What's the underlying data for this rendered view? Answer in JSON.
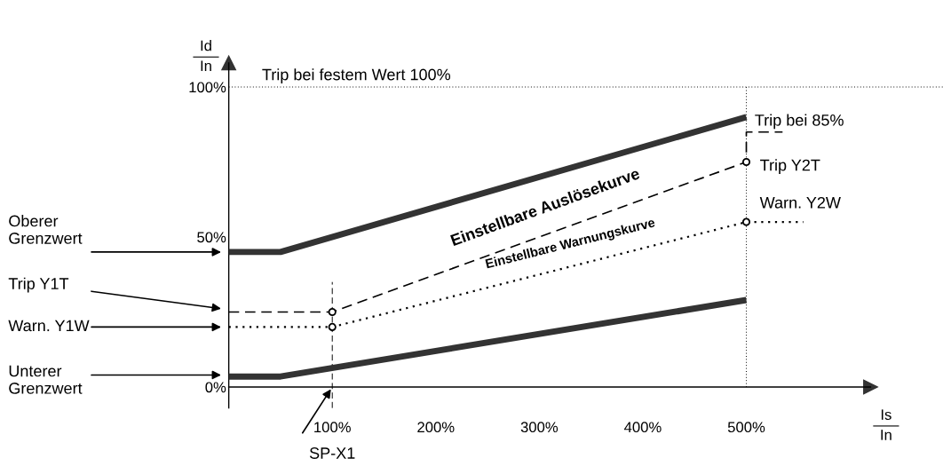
{
  "chart_data": {
    "type": "line",
    "xlabel": "Is\nIn",
    "ylabel": "Id\nIn",
    "xlim": [
      -221,
      690
    ],
    "ylim": [
      -29,
      129
    ],
    "xticks": [
      {
        "value": 100,
        "label": "100%"
      },
      {
        "value": 200,
        "label": "200%"
      },
      {
        "value": 300,
        "label": "300%"
      },
      {
        "value": 400,
        "label": "400%"
      },
      {
        "value": 500,
        "label": "500%"
      }
    ],
    "yticks": [
      {
        "value": 0,
        "label": "0%"
      },
      {
        "value": 50,
        "label": "50%"
      },
      {
        "value": 100,
        "label": "100%"
      }
    ],
    "series": [
      {
        "color": "#333333",
        "line_style": "solid",
        "x": [
          0,
          50,
          500
        ],
        "values": [
          45,
          45,
          90
        ]
      },
      {
        "color": "#333333",
        "line_style": "solid",
        "x": [
          0,
          50,
          500
        ],
        "values": [
          3.5,
          3.5,
          29
        ]
      },
      {
        "color": "#000000",
        "line_style": "dashed",
        "x": [
          0,
          100,
          500,
          500,
          535
        ],
        "values": [
          25,
          25,
          75,
          85,
          85
        ]
      },
      {
        "color": "#000000",
        "line_style": "dotted",
        "x": [
          0,
          100,
          500,
          555
        ],
        "values": [
          20,
          20,
          55,
          55
        ]
      },
      {
        "type": "scatter",
        "color": "#000000",
        "marker": "circle",
        "x": [
          100,
          100,
          500,
          500
        ],
        "values": [
          25,
          20,
          75,
          55
        ]
      }
    ],
    "ref_lines": [
      {
        "axis": "y",
        "value": 100,
        "label": "Trip bei festem Wert 100%",
        "line_style": "dotted"
      },
      {
        "axis": "x",
        "value": 500,
        "line_style": "dotted"
      },
      {
        "axis": "x",
        "value": 100,
        "line_style": "dashed"
      }
    ],
    "annotations": [
      "Oberer\nGrenzwert",
      "Trip Y1T",
      "Warn. Y1W",
      "Unterer\nGrenzwert",
      {
        "text": "SP-X1",
        "x": 100,
        "y": 0
      },
      "Trip bei 85%",
      "Trip Y2T",
      "Warn. Y2W",
      "Einstellbare Auslösekurve",
      "Einstellbare Warnungskurve"
    ],
    "grid": false,
    "legend": false
  }
}
